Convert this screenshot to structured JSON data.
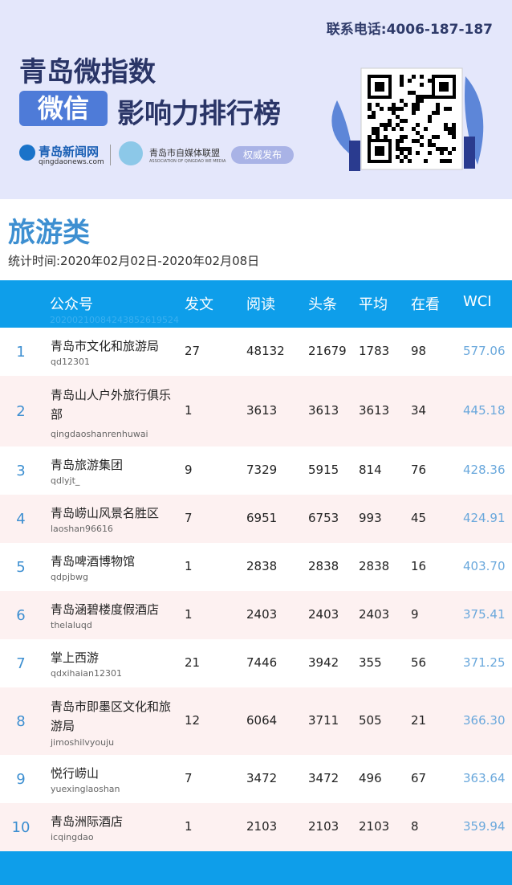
{
  "header": {
    "contact": "联系电话:4006-187-187",
    "title": "青岛微指数",
    "badge": "微信",
    "subtitle": "影响力排行榜",
    "logo1": "青岛新闻网",
    "logo1_url": "qingdaonews.com",
    "logo2": "青岛市自媒体联盟",
    "logo2_en": "ASSOCIATION OF QINGDAO WE MEDIA",
    "tag": "权威发布"
  },
  "category": "旅游类",
  "period": "统计时间:2020年02月02日-2020年02月08日",
  "table": {
    "columns": [
      "公众号",
      "发文",
      "阅读",
      "头条",
      "平均",
      "在看",
      "WCI"
    ],
    "watermark": "20200210084243852619524",
    "rows": [
      [
        "1",
        "青岛市文化和旅游局",
        "qd12301",
        "27",
        "48132",
        "21679",
        "1783",
        "98",
        "577.06"
      ],
      [
        "2",
        "青岛山人户外旅行俱乐部",
        "qingdaoshanrenhuwai",
        "1",
        "3613",
        "3613",
        "3613",
        "34",
        "445.18"
      ],
      [
        "3",
        "青岛旅游集团",
        "qdlyjt_",
        "9",
        "7329",
        "5915",
        "814",
        "76",
        "428.36"
      ],
      [
        "4",
        "青岛崂山风景名胜区",
        "laoshan96616",
        "7",
        "6951",
        "6753",
        "993",
        "45",
        "424.91"
      ],
      [
        "5",
        "青岛啤酒博物馆",
        "qdpjbwg",
        "1",
        "2838",
        "2838",
        "2838",
        "16",
        "403.70"
      ],
      [
        "6",
        "青岛涵碧楼度假酒店",
        "thelaluqd",
        "1",
        "2403",
        "2403",
        "2403",
        "9",
        "375.41"
      ],
      [
        "7",
        "掌上西游",
        "qdxihaian12301",
        "21",
        "7446",
        "3942",
        "355",
        "56",
        "371.25"
      ],
      [
        "8",
        "青岛市即墨区文化和旅游局",
        "jimoshilvyouju",
        "12",
        "6064",
        "3711",
        "505",
        "21",
        "366.30"
      ],
      [
        "9",
        "悦行崂山",
        "yuexinglaoshan",
        "7",
        "3472",
        "3472",
        "496",
        "67",
        "363.64"
      ],
      [
        "10",
        "青岛洲际酒店",
        "icqingdao",
        "1",
        "2103",
        "2103",
        "2103",
        "8",
        "359.94"
      ]
    ]
  }
}
